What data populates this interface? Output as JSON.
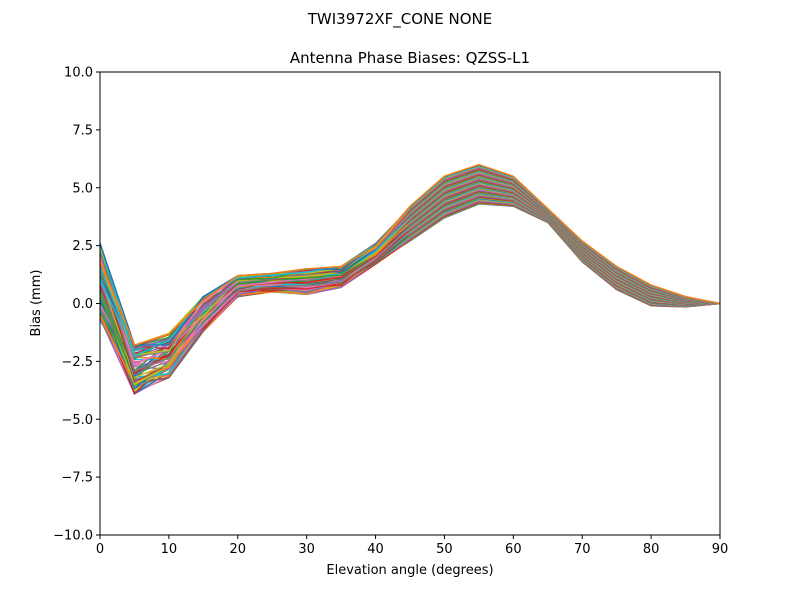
{
  "chart_data": {
    "type": "line",
    "suptitle": "TWI3972XF_CONE  NONE",
    "title": "Antenna Phase Biases: QZSS-L1",
    "xlabel": "Elevation angle (degrees)",
    "ylabel": "Bias (mm)",
    "xlim": [
      0,
      90
    ],
    "ylim": [
      -10,
      10
    ],
    "xticks": [
      0,
      10,
      20,
      30,
      40,
      50,
      60,
      70,
      80,
      90
    ],
    "xtick_labels": [
      "0",
      "10",
      "20",
      "30",
      "40",
      "50",
      "60",
      "70",
      "80",
      "90"
    ],
    "yticks": [
      -10,
      -7.5,
      -5,
      -2.5,
      0,
      2.5,
      5,
      7.5,
      10
    ],
    "ytick_labels": [
      "−10.0",
      "−7.5",
      "−5.0",
      "−2.5",
      "0.0",
      "2.5",
      "5.0",
      "7.5",
      "10.0"
    ],
    "x": [
      0,
      5,
      10,
      15,
      20,
      25,
      30,
      35,
      40,
      45,
      50,
      55,
      60,
      65,
      70,
      75,
      80,
      85,
      90
    ],
    "series_count": 72,
    "envelope": {
      "start_bias": [
        2.6,
        -0.7
      ],
      "min_at_5": [
        -1.8,
        -3.9
      ],
      "min_at_10": [
        -1.3,
        -3.2
      ],
      "at_15": [
        0.3,
        -1.2
      ],
      "at_20": [
        1.2,
        0.3
      ],
      "at_25": [
        1.3,
        0.5
      ],
      "at_30": [
        1.5,
        0.4
      ],
      "at_35": [
        1.6,
        0.7
      ],
      "at_40": [
        2.6,
        1.7
      ],
      "at_45": [
        4.2,
        2.7
      ],
      "at_50": [
        5.5,
        3.7
      ],
      "at_55": [
        6.0,
        4.3
      ],
      "at_60": [
        5.5,
        4.2
      ],
      "at_65": [
        4.1,
        3.5
      ],
      "at_70": [
        2.7,
        1.8
      ],
      "at_75": [
        1.6,
        0.6
      ],
      "at_80": [
        0.8,
        -0.1
      ],
      "at_85": [
        0.3,
        -0.15
      ],
      "at_90": [
        0.0,
        0.0
      ]
    },
    "colors": [
      "#1f77b4",
      "#ff7f0e",
      "#2ca02c",
      "#d62728",
      "#9467bd",
      "#8c564b",
      "#e377c2",
      "#7f7f7f",
      "#bcbd22",
      "#17becf"
    ]
  }
}
